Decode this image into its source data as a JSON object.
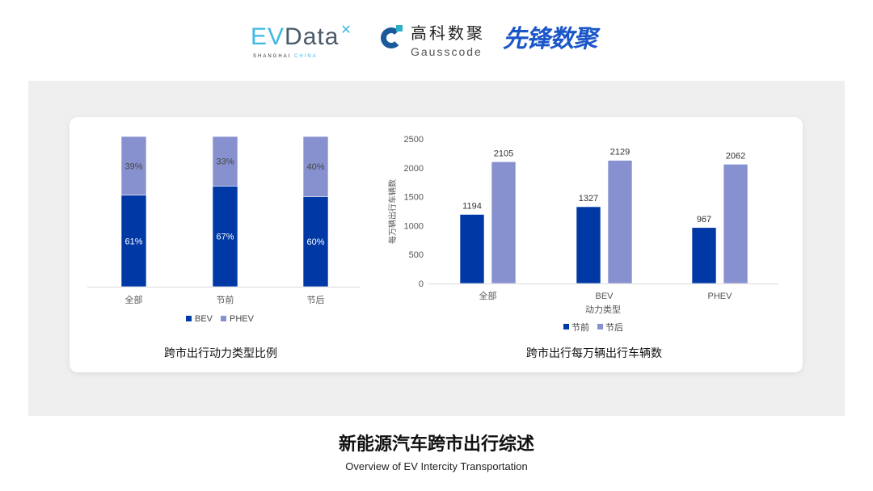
{
  "logos": {
    "evdata": {
      "ev": "EV",
      "data": "Data",
      "sub_a": "SHANGHAI",
      "sub_b": "CHINA"
    },
    "gausscode": {
      "cn": "高科数聚",
      "en": "Gausscode"
    },
    "xianfeng": "先锋数聚"
  },
  "colors": {
    "bev": "#0039a6",
    "phev": "#8891cf",
    "panel": "#efefef"
  },
  "chart_data": [
    {
      "type": "bar",
      "stacked": "percent",
      "title": "跨市出行动力类型比例",
      "categories": [
        "全部",
        "节前",
        "节后"
      ],
      "series": [
        {
          "name": "BEV",
          "values": [
            61,
            67,
            60
          ],
          "labels": [
            "61%",
            "67%",
            "60%"
          ]
        },
        {
          "name": "PHEV",
          "values": [
            39,
            33,
            40
          ],
          "labels": [
            "39%",
            "33%",
            "40%"
          ]
        }
      ],
      "legend": "bottom",
      "grid": false
    },
    {
      "type": "bar",
      "title": "跨市出行每万辆出行车辆数",
      "xlabel": "动力类型",
      "ylabel": "每万辆出行车辆数",
      "categories": [
        "全部",
        "BEV",
        "PHEV"
      ],
      "series": [
        {
          "name": "节前",
          "values": [
            1194,
            1327,
            967
          ]
        },
        {
          "name": "节后",
          "values": [
            2105,
            2129,
            2062
          ]
        }
      ],
      "ylim": [
        0,
        2500
      ],
      "yticks": [
        "0",
        "500",
        "1000",
        "1500",
        "2000",
        "2500"
      ],
      "legend": "bottom",
      "grid": false
    }
  ],
  "footer": {
    "title": "新能源汽车跨市出行综述",
    "subtitle": "Overview of EV Intercity Transportation"
  }
}
